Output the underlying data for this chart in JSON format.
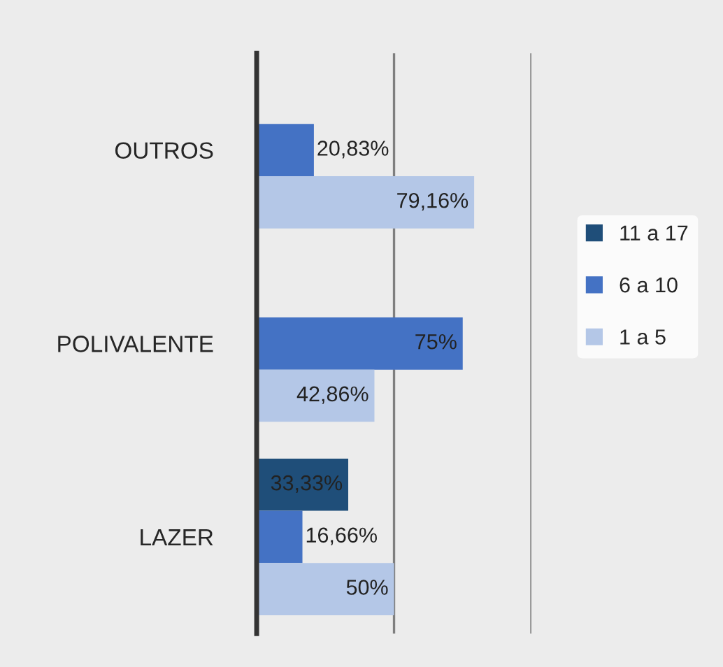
{
  "chart_data": {
    "type": "bar",
    "orientation": "horizontal",
    "categories": [
      "OUTROS",
      "POLIVALENTE",
      "LAZER"
    ],
    "series": [
      {
        "name": "11 a 17",
        "color": "#1f4e79",
        "values": [
          null,
          null,
          33.33
        ],
        "value_labels": [
          null,
          null,
          "33,33%"
        ]
      },
      {
        "name": "6 a 10",
        "color": "#4472c4",
        "values": [
          20.83,
          75,
          16.66
        ],
        "value_labels": [
          "20,83%",
          "75%",
          "16,66%"
        ]
      },
      {
        "name": "1 a 5",
        "color": "#b4c7e7",
        "values": [
          79.16,
          42.86,
          50
        ],
        "value_labels": [
          "79,16%",
          "42,86%",
          "50%"
        ]
      }
    ],
    "xlim": [
      0,
      100
    ],
    "ref_lines": [
      {
        "axis": "x",
        "value": 50,
        "color": "#7f7f7f"
      },
      {
        "axis": "x",
        "value": 100,
        "color": "#7f7f7f"
      }
    ],
    "legend": "right",
    "tick_labels": "y"
  }
}
